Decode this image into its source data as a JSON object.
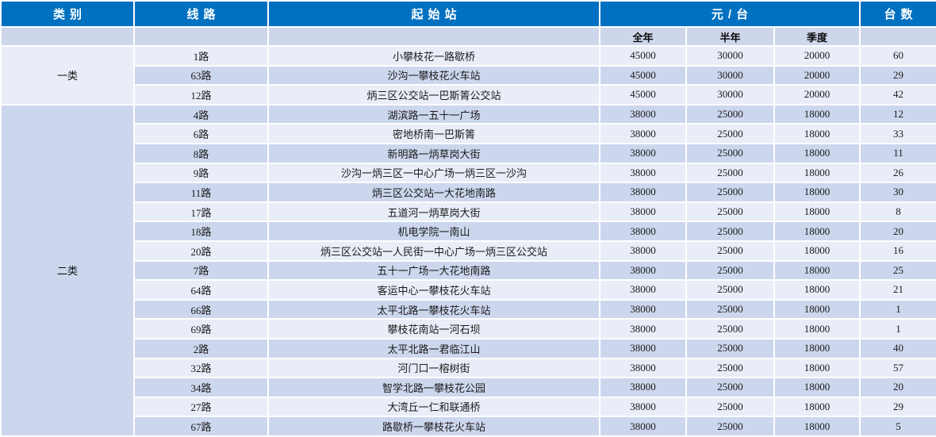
{
  "table": {
    "header": {
      "category": "类别",
      "route": "线路",
      "stations": "起始站",
      "price_group": "元/台",
      "units": "台数",
      "sub_columns": [
        "全年",
        "半年",
        "季度"
      ]
    },
    "groups": [
      {
        "category": "一类",
        "rows": [
          {
            "route": "1路",
            "stations": "小攀枝花一路歇桥",
            "full_year": "45000",
            "half_year": "30000",
            "quarter": "20000",
            "units": "60"
          },
          {
            "route": "63路",
            "stations": "沙沟一攀枝花火车站",
            "full_year": "45000",
            "half_year": "30000",
            "quarter": "20000",
            "units": "29"
          },
          {
            "route": "12路",
            "stations": "炳三区公交站一巴斯箐公交站",
            "full_year": "45000",
            "half_year": "30000",
            "quarter": "20000",
            "units": "42"
          }
        ]
      },
      {
        "category": "二类",
        "rows": [
          {
            "route": "4路",
            "stations": "湖滨路一五十一广场",
            "full_year": "38000",
            "half_year": "25000",
            "quarter": "18000",
            "units": "12"
          },
          {
            "route": "6路",
            "stations": "密地桥南一巴斯箐",
            "full_year": "38000",
            "half_year": "25000",
            "quarter": "18000",
            "units": "33"
          },
          {
            "route": "8路",
            "stations": "新明路一炳草岗大街",
            "full_year": "38000",
            "half_year": "25000",
            "quarter": "18000",
            "units": "11"
          },
          {
            "route": "9路",
            "stations": "沙沟一炳三区一中心广场一炳三区一沙沟",
            "full_year": "38000",
            "half_year": "25000",
            "quarter": "18000",
            "units": "26"
          },
          {
            "route": "11路",
            "stations": "炳三区公交站一大花地南路",
            "full_year": "38000",
            "half_year": "25000",
            "quarter": "18000",
            "units": "30"
          },
          {
            "route": "17路",
            "stations": "五道河一炳草岗大街",
            "full_year": "38000",
            "half_year": "25000",
            "quarter": "18000",
            "units": "8"
          },
          {
            "route": "18路",
            "stations": "机电学院一南山",
            "full_year": "38000",
            "half_year": "25000",
            "quarter": "18000",
            "units": "20"
          },
          {
            "route": "20路",
            "stations": "炳三区公交站一人民街一中心广场一炳三区公交站",
            "full_year": "38000",
            "half_year": "25000",
            "quarter": "18000",
            "units": "16"
          },
          {
            "route": "7路",
            "stations": "五十一广场一大花地南路",
            "full_year": "38000",
            "half_year": "25000",
            "quarter": "18000",
            "units": "25"
          },
          {
            "route": "64路",
            "stations": "客运中心一攀枝花火车站",
            "full_year": "38000",
            "half_year": "25000",
            "quarter": "18000",
            "units": "21"
          },
          {
            "route": "66路",
            "stations": "太平北路一攀枝花火车站",
            "full_year": "38000",
            "half_year": "25000",
            "quarter": "18000",
            "units": "1"
          },
          {
            "route": "69路",
            "stations": "攀枝花南站一河石坝",
            "full_year": "38000",
            "half_year": "25000",
            "quarter": "18000",
            "units": "1"
          },
          {
            "route": "2路",
            "stations": "太平北路一君临江山",
            "full_year": "38000",
            "half_year": "25000",
            "quarter": "18000",
            "units": "40"
          },
          {
            "route": "32路",
            "stations": "河门口一榕树街",
            "full_year": "38000",
            "half_year": "25000",
            "quarter": "18000",
            "units": "57"
          },
          {
            "route": "34路",
            "stations": "智学北路一攀枝花公园",
            "full_year": "38000",
            "half_year": "25000",
            "quarter": "18000",
            "units": "20"
          },
          {
            "route": "27路",
            "stations": "大湾丘一仁和联通桥",
            "full_year": "38000",
            "half_year": "25000",
            "quarter": "18000",
            "units": "29"
          },
          {
            "route": "67路",
            "stations": "路歇桥一攀枝花火车站",
            "full_year": "38000",
            "half_year": "25000",
            "quarter": "18000",
            "units": "5"
          }
        ]
      }
    ],
    "colors": {
      "header_bg": "#0070c0",
      "header_text": "#ffffff",
      "subheader_bg": "#cdd6ea",
      "row_light": "#e8edf8",
      "row_dark": "#ccd7ee",
      "grid": "#ffffff",
      "body_text": "#1a1a1a"
    }
  }
}
